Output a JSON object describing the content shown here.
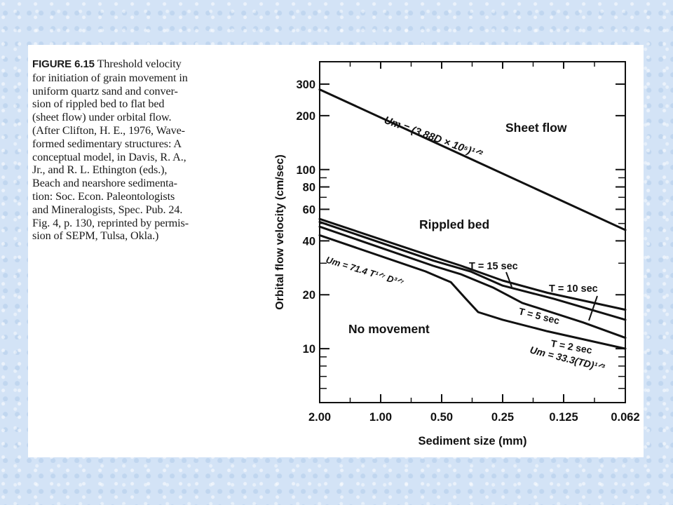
{
  "figure": {
    "label": "FIGURE 6.15",
    "caption": "Threshold velocity\nfor initiation of grain movement in\nuniform quartz sand and conver-\nsion of rippled bed to flat bed\n(sheet flow) under orbital flow.\n(After Clifton, H. E., 1976, Wave-\nformed sedimentary structures: A\nconceptual model, in Davis, R. A.,\nJr., and R. L. Ethington (eds.),\nBeach and nearshore sedimenta-\ntion: Soc. Econ. Paleontologists\nand Mineralogists, Spec. Pub. 24.\nFig. 4, p. 130, reprinted by permis-\nsion of SEPM, Tulsa, Okla.)"
  },
  "chart_data": {
    "type": "line",
    "xlabel": "Sediment size (mm)",
    "ylabel": "Orbital flow velocity (cm/sec)",
    "x_scale": "log (reversed)",
    "y_scale": "log",
    "xlim": [
      2.0,
      0.062
    ],
    "ylim": [
      5,
      400
    ],
    "x_ticks": [
      "2.00",
      "1.00",
      "0.50",
      "0.25",
      "0.125",
      "0.062"
    ],
    "x_tick_values": [
      2.0,
      1.0,
      0.5,
      0.25,
      0.125,
      0.062
    ],
    "y_ticks": [
      "10",
      "20",
      "40",
      "60",
      "80",
      "100",
      "200",
      "300"
    ],
    "y_tick_values": [
      10,
      20,
      40,
      60,
      80,
      100,
      200,
      300
    ],
    "region_labels": [
      "Sheet flow",
      "Rippled bed",
      "No movement"
    ],
    "series": [
      {
        "x": [
          2.0,
          0.062
        ],
        "y": [
          280,
          46
        ]
      },
      {
        "x": [
          2.0,
          0.57,
          0.4,
          0.25,
          0.15,
          0.062
        ],
        "y": [
          53,
          33,
          29,
          24,
          20.5,
          16.5
        ]
      },
      {
        "x": [
          2.0,
          0.55,
          0.36,
          0.25,
          0.14,
          0.062
        ],
        "y": [
          51,
          31,
          27,
          22.5,
          19,
          14.5
        ]
      },
      {
        "x": [
          2.0,
          0.55,
          0.4,
          0.28,
          0.2,
          0.1,
          0.062
        ],
        "y": [
          48,
          29,
          26,
          22,
          18,
          14,
          11.5
        ]
      },
      {
        "x": [
          2.0,
          0.6,
          0.45,
          0.38,
          0.33,
          0.25,
          0.15,
          0.062
        ],
        "y": [
          43,
          27,
          23.5,
          19,
          16,
          14.5,
          12.5,
          10
        ]
      }
    ],
    "annotations": {
      "upper_formula": "Um = (3.88D × 10⁵)¹ᐟ²",
      "lower_formula_left": "Um = 71.4 T¹ᐟ⁷ D³ᐟ⁷",
      "lower_formula_right": "Um = 33.3(TD)¹ᐟ³",
      "t15": "T = 15 sec",
      "t10": "T = 10 sec",
      "t5": "T = 5 sec",
      "t2": "T = 2 sec"
    }
  }
}
